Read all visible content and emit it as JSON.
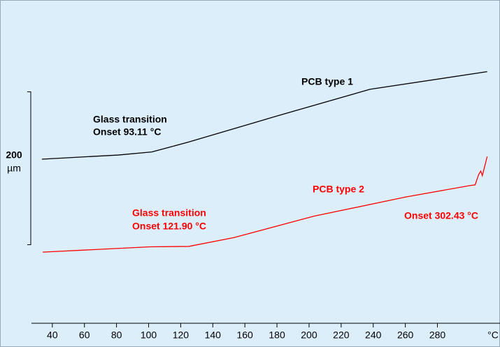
{
  "chart_data": {
    "type": "line",
    "x_label": "°C",
    "xlim": [
      27,
      319
    ],
    "xticks": [
      40,
      60,
      80,
      100,
      120,
      140,
      160,
      180,
      200,
      220,
      240,
      260,
      280
    ],
    "ylim": [
      0,
      420
    ],
    "scale_bar": {
      "length": 200,
      "unit": "µm"
    },
    "series": [
      {
        "name": "PCB type 1",
        "color": "#000000",
        "x": [
          33.5,
          81,
          102,
          125,
          181.5,
          238,
          311
        ],
        "values": [
          214.6,
          220,
          224,
          237,
          272,
          306,
          329
        ]
      },
      {
        "name": "PCB type 2",
        "color": "#ff0000",
        "x": [
          34,
          101,
          125,
          153,
          203,
          260,
          300,
          303.5,
          305.7,
          307,
          308,
          309.5,
          311
        ],
        "values": [
          93,
          100,
          100.5,
          112,
          140,
          165,
          180,
          181,
          194.5,
          199,
          193,
          205.5,
          218
        ]
      }
    ],
    "annotations": [
      {
        "text": "Glass transition",
        "color": "#000000"
      },
      {
        "text": "Onset 93.11 °C",
        "color": "#000000"
      },
      {
        "text": "Glass transition",
        "color": "#ff0000"
      },
      {
        "text": "Onset 121.90 °C",
        "color": "#ff0000"
      },
      {
        "text": "Onset 302.43 °C",
        "color": "#ff0000"
      }
    ]
  }
}
